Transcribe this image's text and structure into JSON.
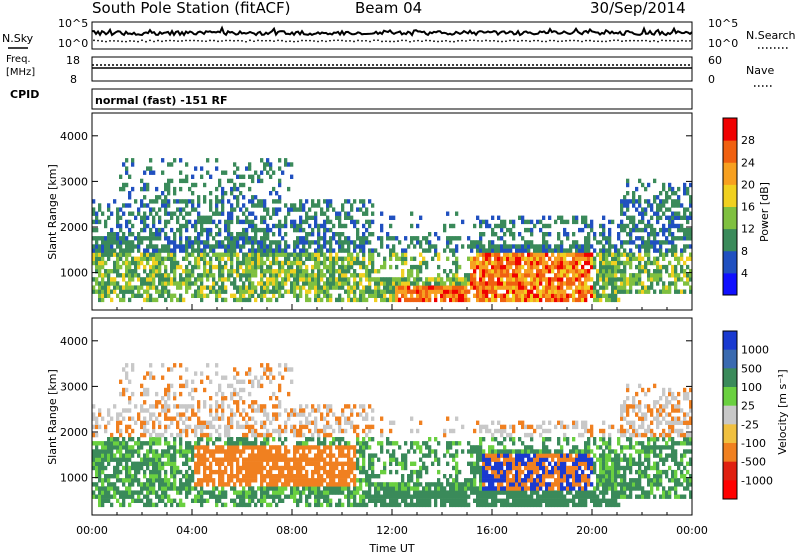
{
  "header": {
    "station": "South Pole Station (fitACF)",
    "beam": "Beam 04",
    "date": "30/Sep/2014"
  },
  "status_panels": {
    "nsky_label": "N.Sky",
    "nsearch_label": "N.Search",
    "freq_label_line1": "Freq.",
    "freq_label_line2": "[MHz]",
    "nave_label": "Nave",
    "cpid_label": "CPID",
    "noise_ticks": {
      "top": "10^5",
      "bottom": "10^0"
    },
    "freq_ticks": [
      "18",
      "8"
    ],
    "nave_ticks": [
      "60",
      "0"
    ],
    "cpid_text": "normal (fast) -151 RF"
  },
  "chart_data": [
    {
      "type": "heatmap",
      "panel": "power",
      "ylabel": "Slant Range [km]",
      "ylim": [
        180,
        4500
      ],
      "y_ticks": [
        1000,
        2000,
        3000,
        4000
      ],
      "xlim": [
        0,
        24
      ],
      "colorbar": {
        "label": "Power [dB]",
        "levels": [
          0,
          4,
          8,
          12,
          16,
          20,
          24,
          28,
          32
        ],
        "tick_labels": [
          "4",
          "8",
          "12",
          "16",
          "20",
          "24",
          "28"
        ],
        "colors": [
          "#1010ff",
          "#2050c0",
          "#3a8a5a",
          "#7fc040",
          "#f0d020",
          "#f7a020",
          "#f06010",
          "#f00000"
        ]
      }
    },
    {
      "type": "heatmap",
      "panel": "velocity",
      "ylabel": "Slant Range [km]",
      "ylim": [
        180,
        4500
      ],
      "y_ticks": [
        1000,
        2000,
        3000,
        4000
      ],
      "xlim": [
        0,
        24
      ],
      "x_ticks": [
        "00:00",
        "04:00",
        "08:00",
        "12:00",
        "16:00",
        "20:00",
        "00:00"
      ],
      "xlabel": "Time UT",
      "colorbar": {
        "label": "Velocity [m s⁻¹]",
        "tick_labels": [
          "1000",
          "500",
          "100",
          "25",
          "-25",
          "-100",
          "-500",
          "-1000"
        ],
        "colors": [
          "#1a3ad0",
          "#3a6ab0",
          "#3a8a5a",
          "#6ad040",
          "#c8c8c8",
          "#f0c040",
          "#f08020",
          "#e02010",
          "#ff0000"
        ]
      }
    }
  ]
}
